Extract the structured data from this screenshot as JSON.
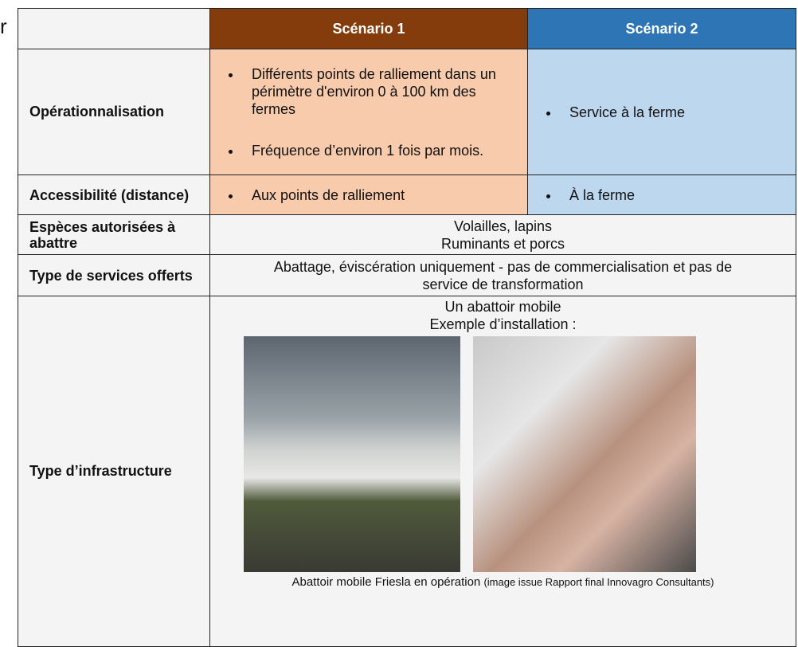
{
  "stray_text": "r",
  "table": {
    "header": [
      "Scénario 1",
      "Scénario 2"
    ],
    "rows": [
      {
        "label": "Opérationnalisation",
        "scenario_1": [
          "Différents points de ralliement dans un périmètre d'environ 0 à 100 km des fermes",
          "Fréquence d’environ 1 fois par mois."
        ],
        "scenario_2": [
          "Service à la ferme"
        ]
      },
      {
        "label": "Accessibilité (distance)",
        "scenario_1": [
          "Aux points de ralliement"
        ],
        "scenario_2": [
          "À la ferme"
        ]
      },
      {
        "label": "Espèces autorisées à abattre",
        "merged": [
          "Volailles, lapins",
          "Ruminants et porcs"
        ]
      },
      {
        "label": "Type de services offerts",
        "merged": [
          "Abattage, éviscération uniquement - pas de commercialisation et pas de service de transformation"
        ]
      },
      {
        "label": "Type d’infrastructure",
        "merged": [
          "Un abattoir mobile",
          "Exemple d’installation :"
        ],
        "caption": "Abattoir mobile Friesla en opération",
        "caption_note": "(image issue Rapport final Innovagro Consultants)"
      }
    ]
  }
}
